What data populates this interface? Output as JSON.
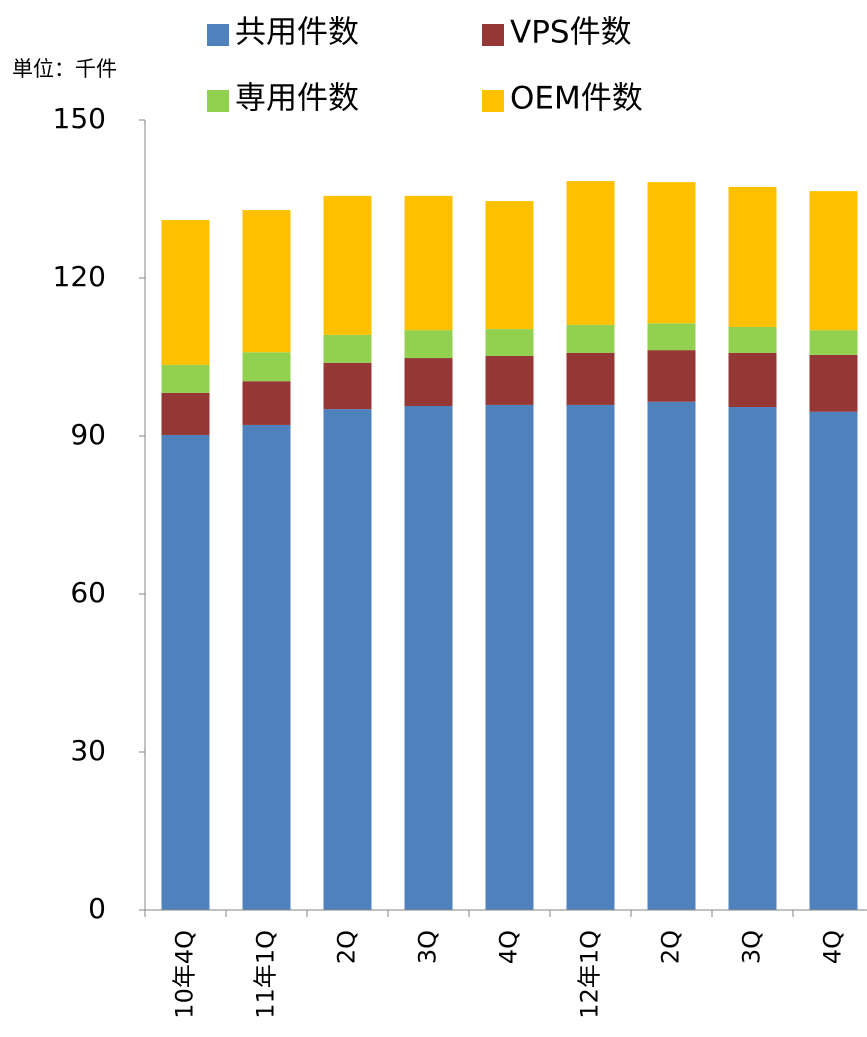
{
  "chart_data": {
    "type": "bar",
    "stacked": true,
    "unit_label": "単位：千件",
    "categories": [
      "10年4Q",
      "11年1Q",
      "2Q",
      "3Q",
      "4Q",
      "12年1Q",
      "2Q",
      "3Q",
      "4Q"
    ],
    "series": [
      {
        "name": "共用件数",
        "color": "#4f81bd",
        "values": [
          90.2,
          92.1,
          95.1,
          95.7,
          95.9,
          95.9,
          96.5,
          95.5,
          94.6
        ]
      },
      {
        "name": "VPS件数",
        "color": "#953735",
        "values": [
          8,
          8.3,
          8.8,
          9.1,
          9.3,
          9.9,
          9.8,
          10.3,
          10.8
        ]
      },
      {
        "name": "専用件数",
        "color": "#92d050",
        "values": [
          5.3,
          5.5,
          5.3,
          5.3,
          5.1,
          5.3,
          5.1,
          4.9,
          4.7
        ]
      },
      {
        "name": "OEM件数",
        "color": "#ffc000",
        "values": [
          27.5,
          27,
          26.4,
          25.5,
          24.3,
          27.3,
          26.8,
          26.6,
          26.4
        ]
      }
    ],
    "ylim": [
      0,
      150
    ],
    "yticks": [
      0,
      30,
      60,
      90,
      120,
      150
    ]
  }
}
